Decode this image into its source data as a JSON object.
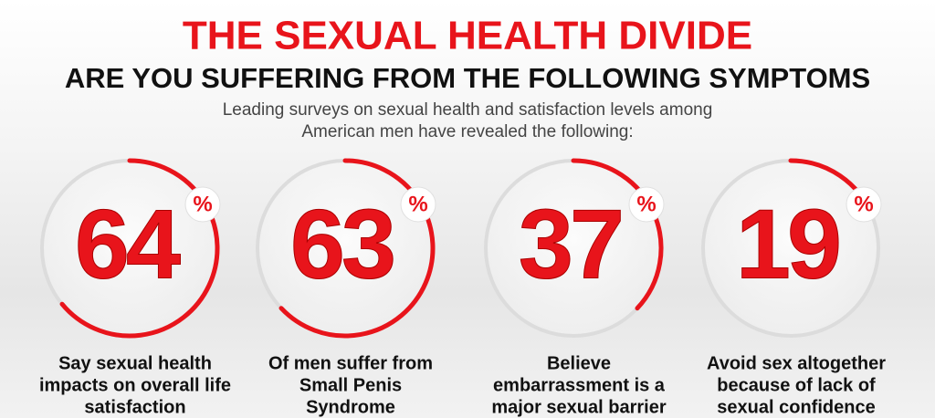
{
  "chart_data": {
    "type": "radial",
    "title": "THE SEXUAL HEALTH DIVIDE",
    "subtitle": "ARE YOU SUFFERING FROM THE FOLLOWING SYMPTOMS",
    "description": [
      "Leading surveys on sexual health and satisfaction levels among",
      "American men have revealed the following:"
    ],
    "unit": "%",
    "ylim": [
      0,
      100
    ],
    "values": [
      64,
      63,
      37,
      19
    ],
    "color": "#e8141b",
    "captions": [
      [
        "Say sexual health",
        "impacts on overall life",
        "satisfaction"
      ],
      [
        "Of men suffer from",
        "Small Penis",
        "Syndrome"
      ],
      [
        "Believe",
        "embarrassment is a",
        "major sexual barrier"
      ],
      [
        "Avoid sex altogether",
        "because of lack of",
        "sexual confidence"
      ]
    ]
  }
}
